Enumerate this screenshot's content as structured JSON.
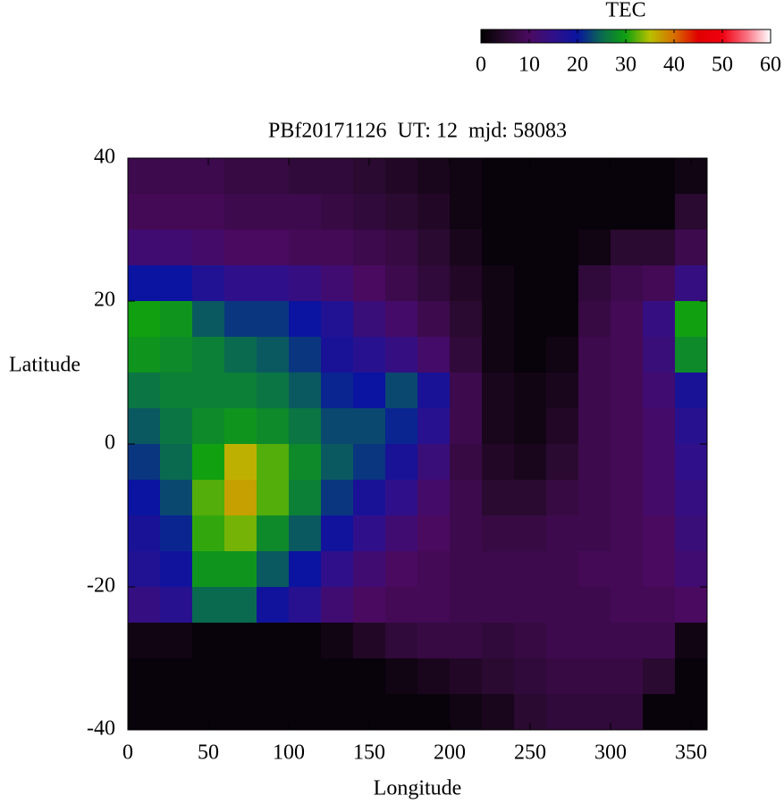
{
  "chart_data": {
    "type": "heatmap",
    "title": "PBf20171126  UT: 12  mjd: 58083",
    "x_label": "Longitude",
    "y_label": "Latitude",
    "x": [
      10,
      30,
      50,
      70,
      90,
      110,
      130,
      150,
      170,
      190,
      210,
      230,
      250,
      270,
      290,
      310,
      330,
      350
    ],
    "y": [
      37.5,
      32.5,
      27.5,
      22.5,
      17.5,
      12.5,
      7.5,
      2.5,
      -2.5,
      -7.5,
      -12.5,
      -17.5,
      -22.5,
      -27.5,
      -32.5,
      -37.5
    ],
    "z": [
      [
        8,
        8,
        8,
        7,
        7,
        6,
        6,
        5,
        4,
        3,
        2,
        1,
        1,
        1,
        1,
        1,
        1,
        2
      ],
      [
        9,
        9,
        9,
        8,
        8,
        8,
        7,
        6,
        5,
        4,
        2,
        1,
        1,
        1,
        1,
        1,
        1,
        5
      ],
      [
        12,
        12,
        11,
        10,
        10,
        9,
        9,
        8,
        7,
        5,
        3,
        1,
        1,
        1,
        2,
        5,
        5,
        8
      ],
      [
        20,
        20,
        17,
        15,
        15,
        14,
        12,
        10,
        8,
        6,
        4,
        2,
        1,
        1,
        6,
        8,
        9,
        14
      ],
      [
        30,
        29,
        24,
        22,
        22,
        20,
        17,
        13,
        11,
        8,
        5,
        2,
        1,
        1,
        7,
        9,
        14,
        30
      ],
      [
        29,
        28,
        27,
        25,
        24,
        22,
        18,
        16,
        14,
        11,
        6,
        2,
        1,
        2,
        8,
        9,
        13,
        28
      ],
      [
        26,
        27,
        27,
        27,
        26,
        24,
        21,
        20,
        23,
        18,
        8,
        3,
        2,
        3,
        8,
        9,
        12,
        18
      ],
      [
        24,
        26,
        28,
        29,
        28,
        26,
        23,
        23,
        21,
        16,
        8,
        3,
        2,
        4,
        8,
        9,
        11,
        16
      ],
      [
        22,
        25,
        30,
        36,
        32,
        28,
        24,
        22,
        18,
        13,
        7,
        4,
        3,
        5,
        8,
        9,
        11,
        15
      ],
      [
        20,
        23,
        32,
        37,
        32,
        27,
        22,
        18,
        15,
        11,
        8,
        5,
        5,
        7,
        8,
        9,
        11,
        14
      ],
      [
        18,
        21,
        31,
        33,
        28,
        24,
        19,
        15,
        12,
        10,
        8,
        7,
        7,
        8,
        8,
        9,
        10,
        13
      ],
      [
        17,
        19,
        29,
        29,
        24,
        20,
        15,
        12,
        10,
        9,
        8,
        8,
        8,
        8,
        9,
        9,
        10,
        12
      ],
      [
        14,
        16,
        25,
        25,
        19,
        16,
        12,
        10,
        9,
        9,
        8,
        8,
        8,
        8,
        8,
        9,
        9,
        10
      ],
      [
        2,
        2,
        1,
        1,
        1,
        1,
        2,
        4,
        6,
        7,
        7,
        6,
        7,
        8,
        8,
        8,
        8,
        2
      ],
      [
        1,
        1,
        1,
        1,
        1,
        1,
        1,
        1,
        2,
        3,
        4,
        5,
        6,
        7,
        7,
        7,
        5,
        1
      ],
      [
        1,
        1,
        1,
        1,
        1,
        1,
        1,
        1,
        1,
        1,
        2,
        3,
        5,
        6,
        6,
        6,
        1,
        1
      ]
    ],
    "xlim": [
      0,
      360
    ],
    "xticks": [
      0,
      50,
      100,
      150,
      200,
      250,
      300,
      350
    ],
    "ylim": [
      -40,
      40
    ],
    "yticks": [
      -40,
      -20,
      0,
      20,
      40
    ],
    "colorbar": {
      "label": "TEC",
      "lim": [
        0,
        60
      ],
      "ticks": [
        0,
        10,
        20,
        30,
        40,
        50,
        60
      ]
    },
    "colorscale": [
      "#000000",
      "#2a0a30",
      "#4a0a60",
      "#30108a",
      "#0a14a0",
      "#0a6a50",
      "#10a010",
      "#b8c000",
      "#d87000",
      "#e00000",
      "#f00010",
      "#f87080",
      "#ffffff"
    ]
  }
}
